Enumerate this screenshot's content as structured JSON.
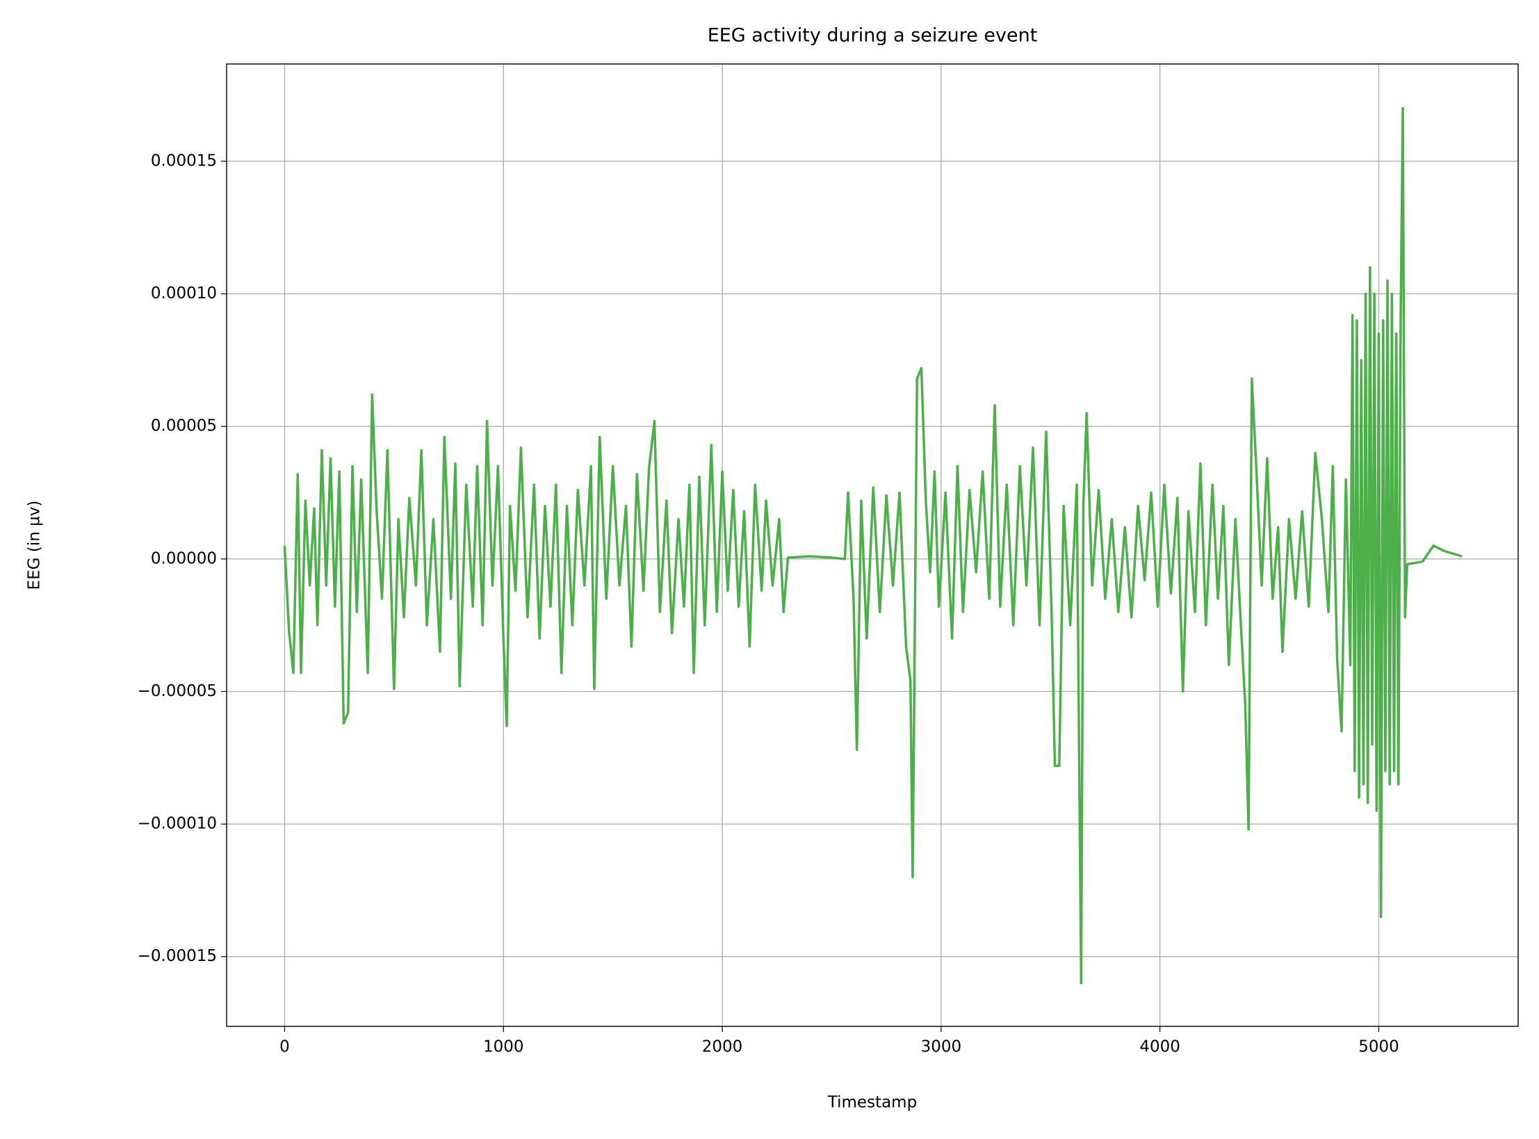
{
  "chart_data": {
    "type": "line",
    "title": "EEG activity during a seizure event",
    "x_label": "Timestamp",
    "y_label": "EEG (in µv)",
    "xlim": [
      -265,
      5637
    ],
    "ylim": [
      -0.0001763,
      0.0001867
    ],
    "xticks": [
      0,
      1000,
      2000,
      3000,
      4000,
      5000
    ],
    "yticks": [
      {
        "value": -0.00015,
        "label": "−0.00015"
      },
      {
        "value": -0.0001,
        "label": "−0.00010"
      },
      {
        "value": -5e-05,
        "label": "−0.00005"
      },
      {
        "value": 0,
        "label": "0.00000"
      },
      {
        "value": 5e-05,
        "label": "0.00005"
      },
      {
        "value": 0.0001,
        "label": "0.00010"
      },
      {
        "value": 0.00015,
        "label": "0.00015"
      }
    ],
    "grid": true,
    "series": [
      {
        "color": "#4daf4a",
        "x": [
          0,
          20,
          40,
          60,
          75,
          95,
          115,
          135,
          150,
          170,
          190,
          210,
          230,
          250,
          270,
          290,
          310,
          330,
          350,
          380,
          400,
          420,
          445,
          470,
          500,
          520,
          545,
          570,
          600,
          625,
          650,
          680,
          710,
          730,
          760,
          780,
          800,
          830,
          860,
          880,
          905,
          925,
          950,
          975,
          1000,
          1015,
          1030,
          1055,
          1080,
          1110,
          1140,
          1165,
          1190,
          1215,
          1240,
          1265,
          1290,
          1315,
          1340,
          1370,
          1400,
          1415,
          1440,
          1470,
          1500,
          1530,
          1560,
          1585,
          1610,
          1640,
          1665,
          1690,
          1715,
          1745,
          1770,
          1800,
          1825,
          1850,
          1870,
          1895,
          1920,
          1950,
          1975,
          2000,
          2025,
          2050,
          2075,
          2100,
          2125,
          2150,
          2180,
          2200,
          2230,
          2260,
          2280,
          2300,
          2400,
          2500,
          2560,
          2575,
          2600,
          2615,
          2635,
          2660,
          2690,
          2720,
          2750,
          2780,
          2810,
          2840,
          2860,
          2870,
          2890,
          2910,
          2930,
          2950,
          2970,
          2990,
          3020,
          3050,
          3075,
          3100,
          3130,
          3160,
          3190,
          3220,
          3245,
          3270,
          3300,
          3330,
          3360,
          3390,
          3420,
          3450,
          3480,
          3505,
          3520,
          3540,
          3560,
          3590,
          3620,
          3640,
          3650,
          3665,
          3690,
          3720,
          3750,
          3780,
          3810,
          3840,
          3870,
          3900,
          3930,
          3960,
          3990,
          4020,
          4050,
          4080,
          4105,
          4130,
          4160,
          4185,
          4210,
          4240,
          4265,
          4290,
          4315,
          4345,
          4370,
          4390,
          4405,
          4420,
          4440,
          4465,
          4490,
          4515,
          4540,
          4560,
          4590,
          4620,
          4650,
          4680,
          4710,
          4740,
          4770,
          4790,
          4810,
          4830,
          4850,
          4870,
          4880,
          4890,
          4900,
          4910,
          4920,
          4930,
          4940,
          4950,
          4960,
          4970,
          4980,
          4990,
          5000,
          5010,
          5020,
          5030,
          5040,
          5050,
          5060,
          5070,
          5080,
          5090,
          5100,
          5110,
          5120,
          5130,
          5200,
          5250,
          5300,
          5380
        ],
        "values": [
          5e-06,
          -2.7e-05,
          -4.3e-05,
          3.2e-05,
          -4.3e-05,
          2.2e-05,
          -1e-05,
          1.9e-05,
          -2.5e-05,
          4.1e-05,
          -1e-05,
          3.8e-05,
          -1.8e-05,
          3.3e-05,
          -6.2e-05,
          -5.8e-05,
          3.5e-05,
          -2e-05,
          3e-05,
          -4.3e-05,
          6.2e-05,
          1.9e-05,
          -1.5e-05,
          4.1e-05,
          -4.9e-05,
          1.5e-05,
          -2.2e-05,
          2.3e-05,
          -1e-05,
          4.1e-05,
          -2.5e-05,
          1.5e-05,
          -3.5e-05,
          4.6e-05,
          -1.5e-05,
          3.6e-05,
          -4.8e-05,
          2.8e-05,
          -1.8e-05,
          3.5e-05,
          -2.5e-05,
          5.2e-05,
          -1e-05,
          3.5e-05,
          -3e-05,
          -6.3e-05,
          2e-05,
          -1.2e-05,
          4.2e-05,
          -2.2e-05,
          2.8e-05,
          -3e-05,
          2e-05,
          -1.8e-05,
          2.8e-05,
          -4.3e-05,
          2e-05,
          -2.5e-05,
          2.6e-05,
          -1e-05,
          3.5e-05,
          -4.9e-05,
          4.6e-05,
          -1.5e-05,
          3.5e-05,
          -1e-05,
          2e-05,
          -3.3e-05,
          3.2e-05,
          -1.2e-05,
          3.4e-05,
          5.2e-05,
          -2e-05,
          2.2e-05,
          -2.8e-05,
          1.5e-05,
          -1.8e-05,
          2.8e-05,
          -4.3e-05,
          3.1e-05,
          -2.5e-05,
          4.3e-05,
          -2e-05,
          3.3e-05,
          -1.2e-05,
          2.6e-05,
          -1.8e-05,
          1.8e-05,
          -3.3e-05,
          2.8e-05,
          -1.2e-05,
          2.2e-05,
          -1e-05,
          1.5e-05,
          -2e-05,
          5e-07,
          1e-06,
          5e-07,
          0,
          2.5e-05,
          -1.5e-05,
          -7.2e-05,
          2.2e-05,
          -3e-05,
          2.7e-05,
          -2e-05,
          2.4e-05,
          -1e-05,
          2.5e-05,
          -3.3e-05,
          -4.6e-05,
          -0.00012,
          6.8e-05,
          7.2e-05,
          2.2e-05,
          -5e-06,
          3.3e-05,
          -1.8e-05,
          2.5e-05,
          -3e-05,
          3.5e-05,
          -2e-05,
          2.6e-05,
          -5e-06,
          3.3e-05,
          -1.5e-05,
          5.8e-05,
          -1.8e-05,
          2.8e-05,
          -2.5e-05,
          3.5e-05,
          -1e-05,
          4.2e-05,
          -2.5e-05,
          4.8e-05,
          -2e-05,
          -7.8e-05,
          -7.8e-05,
          2e-05,
          -2.5e-05,
          2.8e-05,
          -0.00016,
          2e-05,
          5.5e-05,
          -1e-05,
          2.6e-05,
          -1.5e-05,
          1.5e-05,
          -2e-05,
          1.2e-05,
          -2.2e-05,
          2e-05,
          -8e-06,
          2.5e-05,
          -1.8e-05,
          2.8e-05,
          -1.3e-05,
          2.3e-05,
          -5e-05,
          1.8e-05,
          -2e-05,
          3.6e-05,
          -2.5e-05,
          2.8e-05,
          -1.5e-05,
          2e-05,
          -4e-05,
          1.5e-05,
          -2.5e-05,
          -5.5e-05,
          -0.000102,
          6.8e-05,
          3.5e-05,
          -1e-05,
          3.8e-05,
          -1.5e-05,
          1.2e-05,
          -3.5e-05,
          1.5e-05,
          -1.5e-05,
          1.8e-05,
          -1.8e-05,
          4e-05,
          1.5e-05,
          -2e-05,
          3.5e-05,
          -3.8e-05,
          -6.5e-05,
          3e-05,
          -4e-05,
          9.2e-05,
          -8e-05,
          9e-05,
          -9e-05,
          7.5e-05,
          -8.5e-05,
          0.0001,
          -9.2e-05,
          0.00011,
          -7e-05,
          0.0001,
          -9.5e-05,
          8.5e-05,
          -0.000135,
          9e-05,
          -8e-05,
          0.000105,
          -8.5e-05,
          0.0001,
          -8e-05,
          8.5e-05,
          -8.5e-05,
          9e-05,
          0.00017,
          -2.2e-05,
          -2e-06,
          -1e-06,
          5e-06,
          3e-06,
          1e-06
        ]
      }
    ]
  }
}
